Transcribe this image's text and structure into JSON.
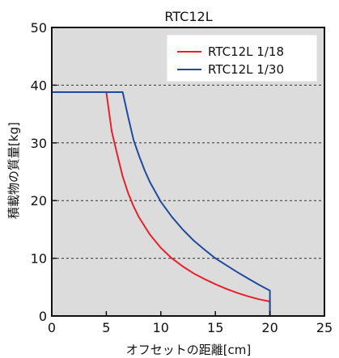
{
  "chart_data": {
    "type": "line",
    "title": "RTC12L",
    "xlabel": "オフセットの距離[cm]",
    "ylabel": "積載物の質量[kg]",
    "xlim": [
      0,
      25
    ],
    "ylim": [
      0,
      50
    ],
    "xticks": [
      0,
      5,
      10,
      15,
      20,
      25
    ],
    "yticks": [
      0,
      10,
      20,
      30,
      40,
      50
    ],
    "grid": "horizontal dashed at 10, 20, 30, 40",
    "legend_position": "top-right",
    "background": "#dcdcdd",
    "series": [
      {
        "name": "RTC12L 1/18",
        "color": "#e8202a",
        "points": [
          [
            0,
            38.8
          ],
          [
            5.0,
            38.8
          ],
          [
            5.5,
            32.0
          ],
          [
            6.0,
            28.0
          ],
          [
            6.5,
            24.2
          ],
          [
            7.0,
            21.3
          ],
          [
            7.5,
            19.0
          ],
          [
            8.0,
            17.1
          ],
          [
            9.0,
            14.1
          ],
          [
            10.0,
            11.8
          ],
          [
            11.0,
            10.0
          ],
          [
            12.0,
            8.6
          ],
          [
            13.0,
            7.4
          ],
          [
            14.0,
            6.4
          ],
          [
            15.0,
            5.5
          ],
          [
            16.0,
            4.7
          ],
          [
            17.0,
            4.0
          ],
          [
            18.0,
            3.4
          ],
          [
            19.0,
            2.9
          ],
          [
            20.0,
            2.5
          ],
          [
            20.0,
            0
          ]
        ]
      },
      {
        "name": "RTC12L 1/30",
        "color": "#1f4aa0",
        "points": [
          [
            0,
            38.8
          ],
          [
            6.5,
            38.8
          ],
          [
            7.0,
            34.5
          ],
          [
            7.5,
            30.5
          ],
          [
            8.0,
            27.8
          ],
          [
            8.5,
            25.3
          ],
          [
            9.0,
            23.2
          ],
          [
            10.0,
            19.8
          ],
          [
            11.0,
            17.2
          ],
          [
            12.0,
            15.0
          ],
          [
            13.0,
            13.1
          ],
          [
            14.0,
            11.5
          ],
          [
            15.0,
            10.0
          ],
          [
            16.0,
            8.8
          ],
          [
            17.0,
            7.6
          ],
          [
            18.0,
            6.5
          ],
          [
            19.0,
            5.4
          ],
          [
            20.0,
            4.4
          ],
          [
            20.0,
            0
          ]
        ]
      }
    ]
  }
}
